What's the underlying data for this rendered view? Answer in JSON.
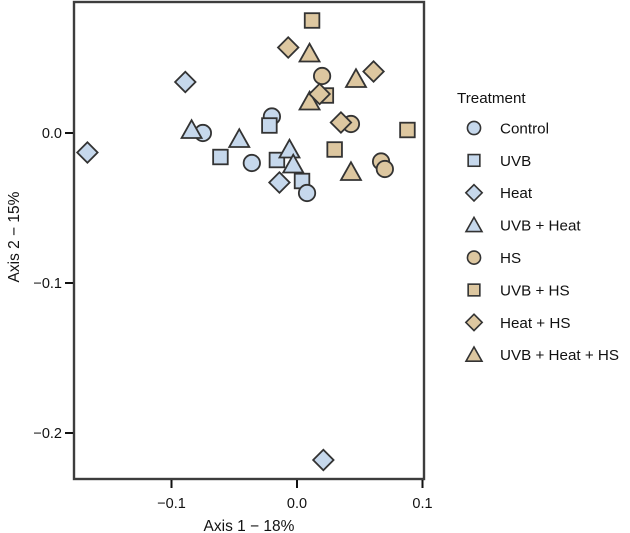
{
  "figure": {
    "background": "#ffffff"
  },
  "chart_data": {
    "type": "scatter",
    "title": "",
    "xlabel": "Axis 1 − 18%",
    "ylabel": "Axis 2 − 15%",
    "xlim": [
      -0.178,
      0.101
    ],
    "ylim": [
      -0.231,
      0.087
    ],
    "x_ticks": [
      -0.1,
      0.0,
      0.1
    ],
    "x_tick_labels": [
      "−0.1",
      "0.0",
      "0.1"
    ],
    "y_ticks": [
      0.0,
      -0.1,
      -0.2
    ],
    "y_tick_labels": [
      "0.0",
      "−0.1",
      "−0.2"
    ],
    "grid": false,
    "legend_title": "Treatment",
    "legend_position": "right",
    "marker_stroke": "#333333",
    "colors": {
      "blue": "#c6d8ec",
      "tan": "#ddc7a0",
      "frame": "#3d3d3d"
    },
    "series": [
      {
        "name": "Control",
        "marker": "circle",
        "fill": "#c6d8ec",
        "points": [
          [
            -0.075,
            0.0
          ],
          [
            -0.02,
            0.011
          ],
          [
            -0.036,
            -0.02
          ],
          [
            0.008,
            -0.04
          ]
        ]
      },
      {
        "name": "UVB",
        "marker": "square",
        "fill": "#c6d8ec",
        "points": [
          [
            -0.061,
            -0.016
          ],
          [
            -0.022,
            0.005
          ],
          [
            -0.016,
            -0.018
          ],
          [
            0.004,
            -0.032
          ]
        ]
      },
      {
        "name": "Heat",
        "marker": "diamond",
        "fill": "#c6d8ec",
        "points": [
          [
            -0.167,
            -0.013
          ],
          [
            -0.089,
            0.034
          ],
          [
            -0.014,
            -0.033
          ],
          [
            0.021,
            -0.218
          ]
        ]
      },
      {
        "name": "UVB + Heat",
        "marker": "triangle",
        "fill": "#c6d8ec",
        "points": [
          [
            -0.084,
            0.002
          ],
          [
            -0.046,
            -0.004
          ],
          [
            -0.006,
            -0.011
          ],
          [
            -0.003,
            -0.021
          ]
        ]
      },
      {
        "name": "HS",
        "marker": "circle",
        "fill": "#ddc7a0",
        "points": [
          [
            0.02,
            0.038
          ],
          [
            0.043,
            0.006
          ],
          [
            0.067,
            -0.019
          ],
          [
            0.07,
            -0.024
          ]
        ]
      },
      {
        "name": "UVB + HS",
        "marker": "square",
        "fill": "#ddc7a0",
        "points": [
          [
            0.012,
            0.075
          ],
          [
            0.023,
            0.025
          ],
          [
            0.03,
            -0.011
          ],
          [
            0.088,
            0.002
          ]
        ]
      },
      {
        "name": "Heat + HS",
        "marker": "diamond",
        "fill": "#ddc7a0",
        "points": [
          [
            -0.007,
            0.057
          ],
          [
            0.018,
            0.026
          ],
          [
            0.035,
            0.007
          ],
          [
            0.061,
            0.041
          ]
        ]
      },
      {
        "name": "UVB + Heat + HS",
        "marker": "triangle",
        "fill": "#ddc7a0",
        "points": [
          [
            0.01,
            0.053
          ],
          [
            0.047,
            0.036
          ],
          [
            0.01,
            0.021
          ],
          [
            0.043,
            -0.026
          ]
        ]
      }
    ]
  }
}
